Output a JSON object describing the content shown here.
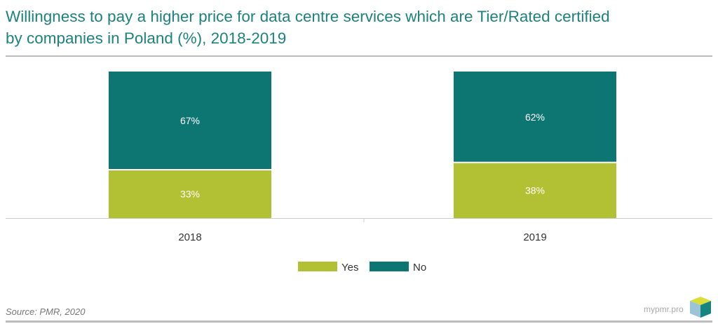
{
  "title_line1": "Willingness to pay a higher price for data centre services which are Tier/Rated certified",
  "title_line2": "by companies in Poland (%), 2018-2019",
  "source": "Source: PMR, 2020",
  "brand": "mypmr.pro",
  "chart_data": {
    "type": "bar",
    "stacked": true,
    "categories": [
      "2018",
      "2019"
    ],
    "series": [
      {
        "name": "Yes",
        "values": [
          33,
          38
        ],
        "labels": [
          "33%",
          "38%"
        ],
        "color": "#b2c034"
      },
      {
        "name": "No",
        "values": [
          67,
          62
        ],
        "labels": [
          "67%",
          "62%"
        ],
        "color": "#0d7572"
      }
    ],
    "ylim": [
      0,
      100
    ],
    "grid": false,
    "legend": "bottom"
  }
}
